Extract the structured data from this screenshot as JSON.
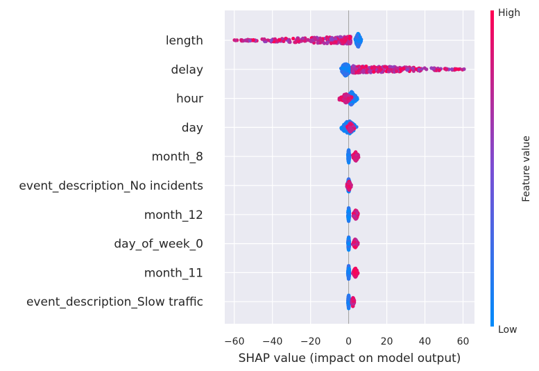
{
  "chart_data": {
    "type": "scatter",
    "subtype": "shap-beeswarm-summary",
    "title": "",
    "xlabel": "SHAP value (impact on model output)",
    "ylabel": "",
    "xlim": [
      -65,
      66
    ],
    "xticks": [
      -60,
      -40,
      -20,
      0,
      20,
      40,
      60
    ],
    "grid": true,
    "features": [
      {
        "name": "length",
        "low_range": [
          3,
          7
        ],
        "high_range": [
          -60,
          1
        ],
        "high_spread": "wide"
      },
      {
        "name": "delay",
        "low_range": [
          -5,
          2
        ],
        "high_range": [
          2,
          61
        ],
        "high_spread": "wide"
      },
      {
        "name": "hour",
        "low_range": [
          -2,
          5
        ],
        "high_range": [
          -5,
          2
        ]
      },
      {
        "name": "day",
        "low_range": [
          -5,
          5
        ],
        "high_range": [
          -1,
          3
        ]
      },
      {
        "name": "month_8",
        "low_range": [
          -0.5,
          0.5
        ],
        "high_range": [
          2,
          5.5
        ]
      },
      {
        "name": "event_description_No incidents",
        "low_range": [
          -1,
          1
        ],
        "high_range": [
          -1,
          1.5
        ]
      },
      {
        "name": "month_12",
        "low_range": [
          -0.5,
          0.5
        ],
        "high_range": [
          2,
          5.5
        ]
      },
      {
        "name": "day_of_week_0",
        "low_range": [
          -0.5,
          0.5
        ],
        "high_range": [
          2,
          5
        ]
      },
      {
        "name": "month_11",
        "low_range": [
          -0.5,
          0.5
        ],
        "high_range": [
          2,
          5
        ]
      },
      {
        "name": "event_description_Slow traffic",
        "low_range": [
          -0.5,
          0.5
        ],
        "high_range": [
          1.5,
          3
        ]
      }
    ],
    "colorbar": {
      "label": "Feature value",
      "high": "High",
      "low": "Low",
      "high_color": "#ff0052",
      "low_color": "#008bfb"
    }
  },
  "colors": {
    "plot_bg": "#eaeaf2",
    "grid": "#ffffff",
    "zero_line": "#999999",
    "low": "#008bfb",
    "high": "#ff0052"
  }
}
